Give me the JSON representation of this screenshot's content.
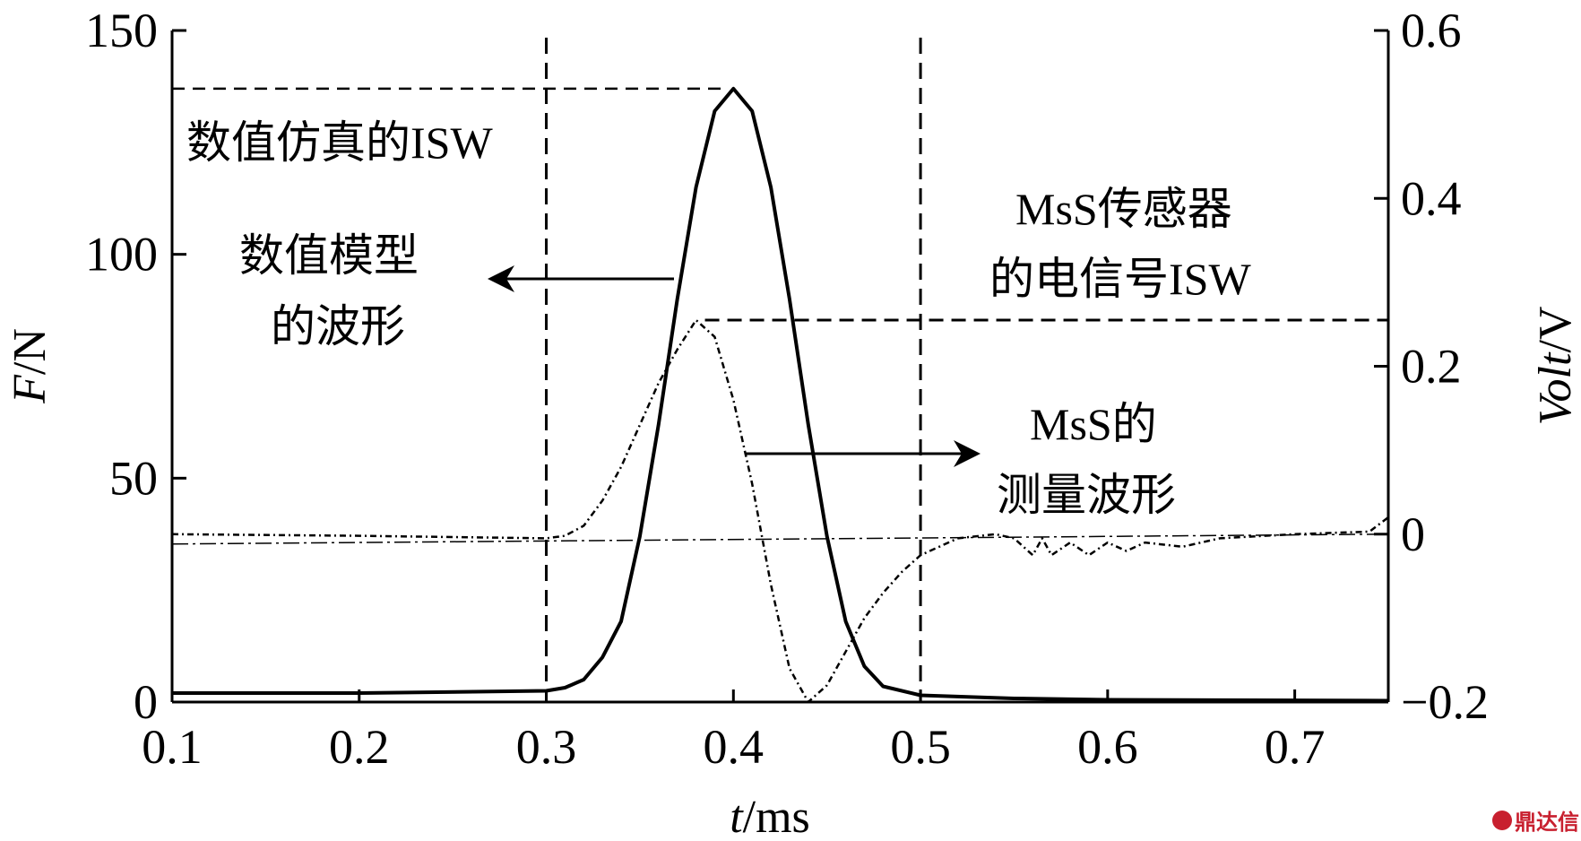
{
  "chart_data": {
    "type": "line",
    "xlabel_italic": "t",
    "xlabel_unit": "/ms",
    "ylabel_left_italic": "F",
    "ylabel_left_unit": "/N",
    "ylabel_right_italic": "Volt",
    "ylabel_right_unit": "/V",
    "xlim": [
      0.1,
      0.75
    ],
    "ylim_left": [
      0,
      150
    ],
    "ylim_right": [
      -0.2,
      0.6
    ],
    "x_ticks": [
      "0.1",
      "0.2",
      "0.3",
      "0.4",
      "0.5",
      "0.6",
      "0.7"
    ],
    "x_tick_values": [
      0.1,
      0.2,
      0.3,
      0.4,
      0.5,
      0.6,
      0.7
    ],
    "y_left_ticks": [
      "0",
      "50",
      "100",
      "150"
    ],
    "y_left_tick_values": [
      0,
      50,
      100,
      150
    ],
    "y_right_ticks": [
      "−0.2",
      "0",
      "0.2",
      "0.4",
      "0.6"
    ],
    "y_right_tick_values": [
      -0.2,
      0,
      0.2,
      0.4,
      0.6
    ],
    "series": [
      {
        "name": "数值模型的波形",
        "axis": "left",
        "style": "solid",
        "points": [
          [
            0.1,
            2
          ],
          [
            0.2,
            2
          ],
          [
            0.3,
            2.5
          ],
          [
            0.31,
            3.2
          ],
          [
            0.32,
            5
          ],
          [
            0.33,
            10
          ],
          [
            0.34,
            18
          ],
          [
            0.35,
            37
          ],
          [
            0.36,
            62
          ],
          [
            0.37,
            90
          ],
          [
            0.38,
            115
          ],
          [
            0.39,
            132
          ],
          [
            0.4,
            137
          ],
          [
            0.41,
            132
          ],
          [
            0.42,
            115
          ],
          [
            0.43,
            90
          ],
          [
            0.44,
            62
          ],
          [
            0.45,
            37
          ],
          [
            0.46,
            18
          ],
          [
            0.47,
            8
          ],
          [
            0.48,
            3.5
          ],
          [
            0.5,
            1.5
          ],
          [
            0.55,
            0.8
          ],
          [
            0.6,
            0.5
          ],
          [
            0.75,
            0.3
          ]
        ]
      },
      {
        "name": "MsS的测量波形",
        "axis": "right",
        "style": "dashdot",
        "points": [
          [
            0.1,
            0
          ],
          [
            0.2,
            -0.002
          ],
          [
            0.3,
            -0.005
          ],
          [
            0.31,
            -0.002
          ],
          [
            0.32,
            0.01
          ],
          [
            0.33,
            0.04
          ],
          [
            0.34,
            0.08
          ],
          [
            0.35,
            0.13
          ],
          [
            0.36,
            0.18
          ],
          [
            0.37,
            0.22
          ],
          [
            0.38,
            0.255
          ],
          [
            0.39,
            0.235
          ],
          [
            0.4,
            0.16
          ],
          [
            0.41,
            0.06
          ],
          [
            0.42,
            -0.06
          ],
          [
            0.43,
            -0.16
          ],
          [
            0.44,
            -0.2
          ],
          [
            0.45,
            -0.18
          ],
          [
            0.46,
            -0.14
          ],
          [
            0.47,
            -0.1
          ],
          [
            0.48,
            -0.07
          ],
          [
            0.49,
            -0.045
          ],
          [
            0.5,
            -0.025
          ],
          [
            0.52,
            -0.005
          ],
          [
            0.54,
            0
          ],
          [
            0.55,
            -0.005
          ],
          [
            0.56,
            -0.025
          ],
          [
            0.565,
            -0.005
          ],
          [
            0.57,
            -0.025
          ],
          [
            0.58,
            -0.01
          ],
          [
            0.59,
            -0.025
          ],
          [
            0.6,
            -0.01
          ],
          [
            0.61,
            -0.02
          ],
          [
            0.62,
            -0.01
          ],
          [
            0.64,
            -0.015
          ],
          [
            0.66,
            -0.005
          ],
          [
            0.7,
            0
          ],
          [
            0.74,
            0.003
          ],
          [
            0.75,
            0.02
          ]
        ]
      }
    ],
    "reference_lines": {
      "peak_force": 137,
      "peak_force_t": 0.4,
      "peak_volt": 0.255,
      "peak_volt_t": 0.38,
      "vertical_t": [
        0.3,
        0.5
      ],
      "zero_volt": 0
    },
    "annotations": {
      "sim_isw": "数值仿真的ISW",
      "model_line1": "数值模型",
      "model_line2": "的波形",
      "sensor_line1": "MsS传感器",
      "sensor_line2": "的电信号ISW",
      "meas_line1": "MsS的",
      "meas_line2": "测量波形"
    }
  },
  "watermark": "鼎达信",
  "colors": {
    "line": "#000000",
    "watermark": "#c8202f"
  }
}
